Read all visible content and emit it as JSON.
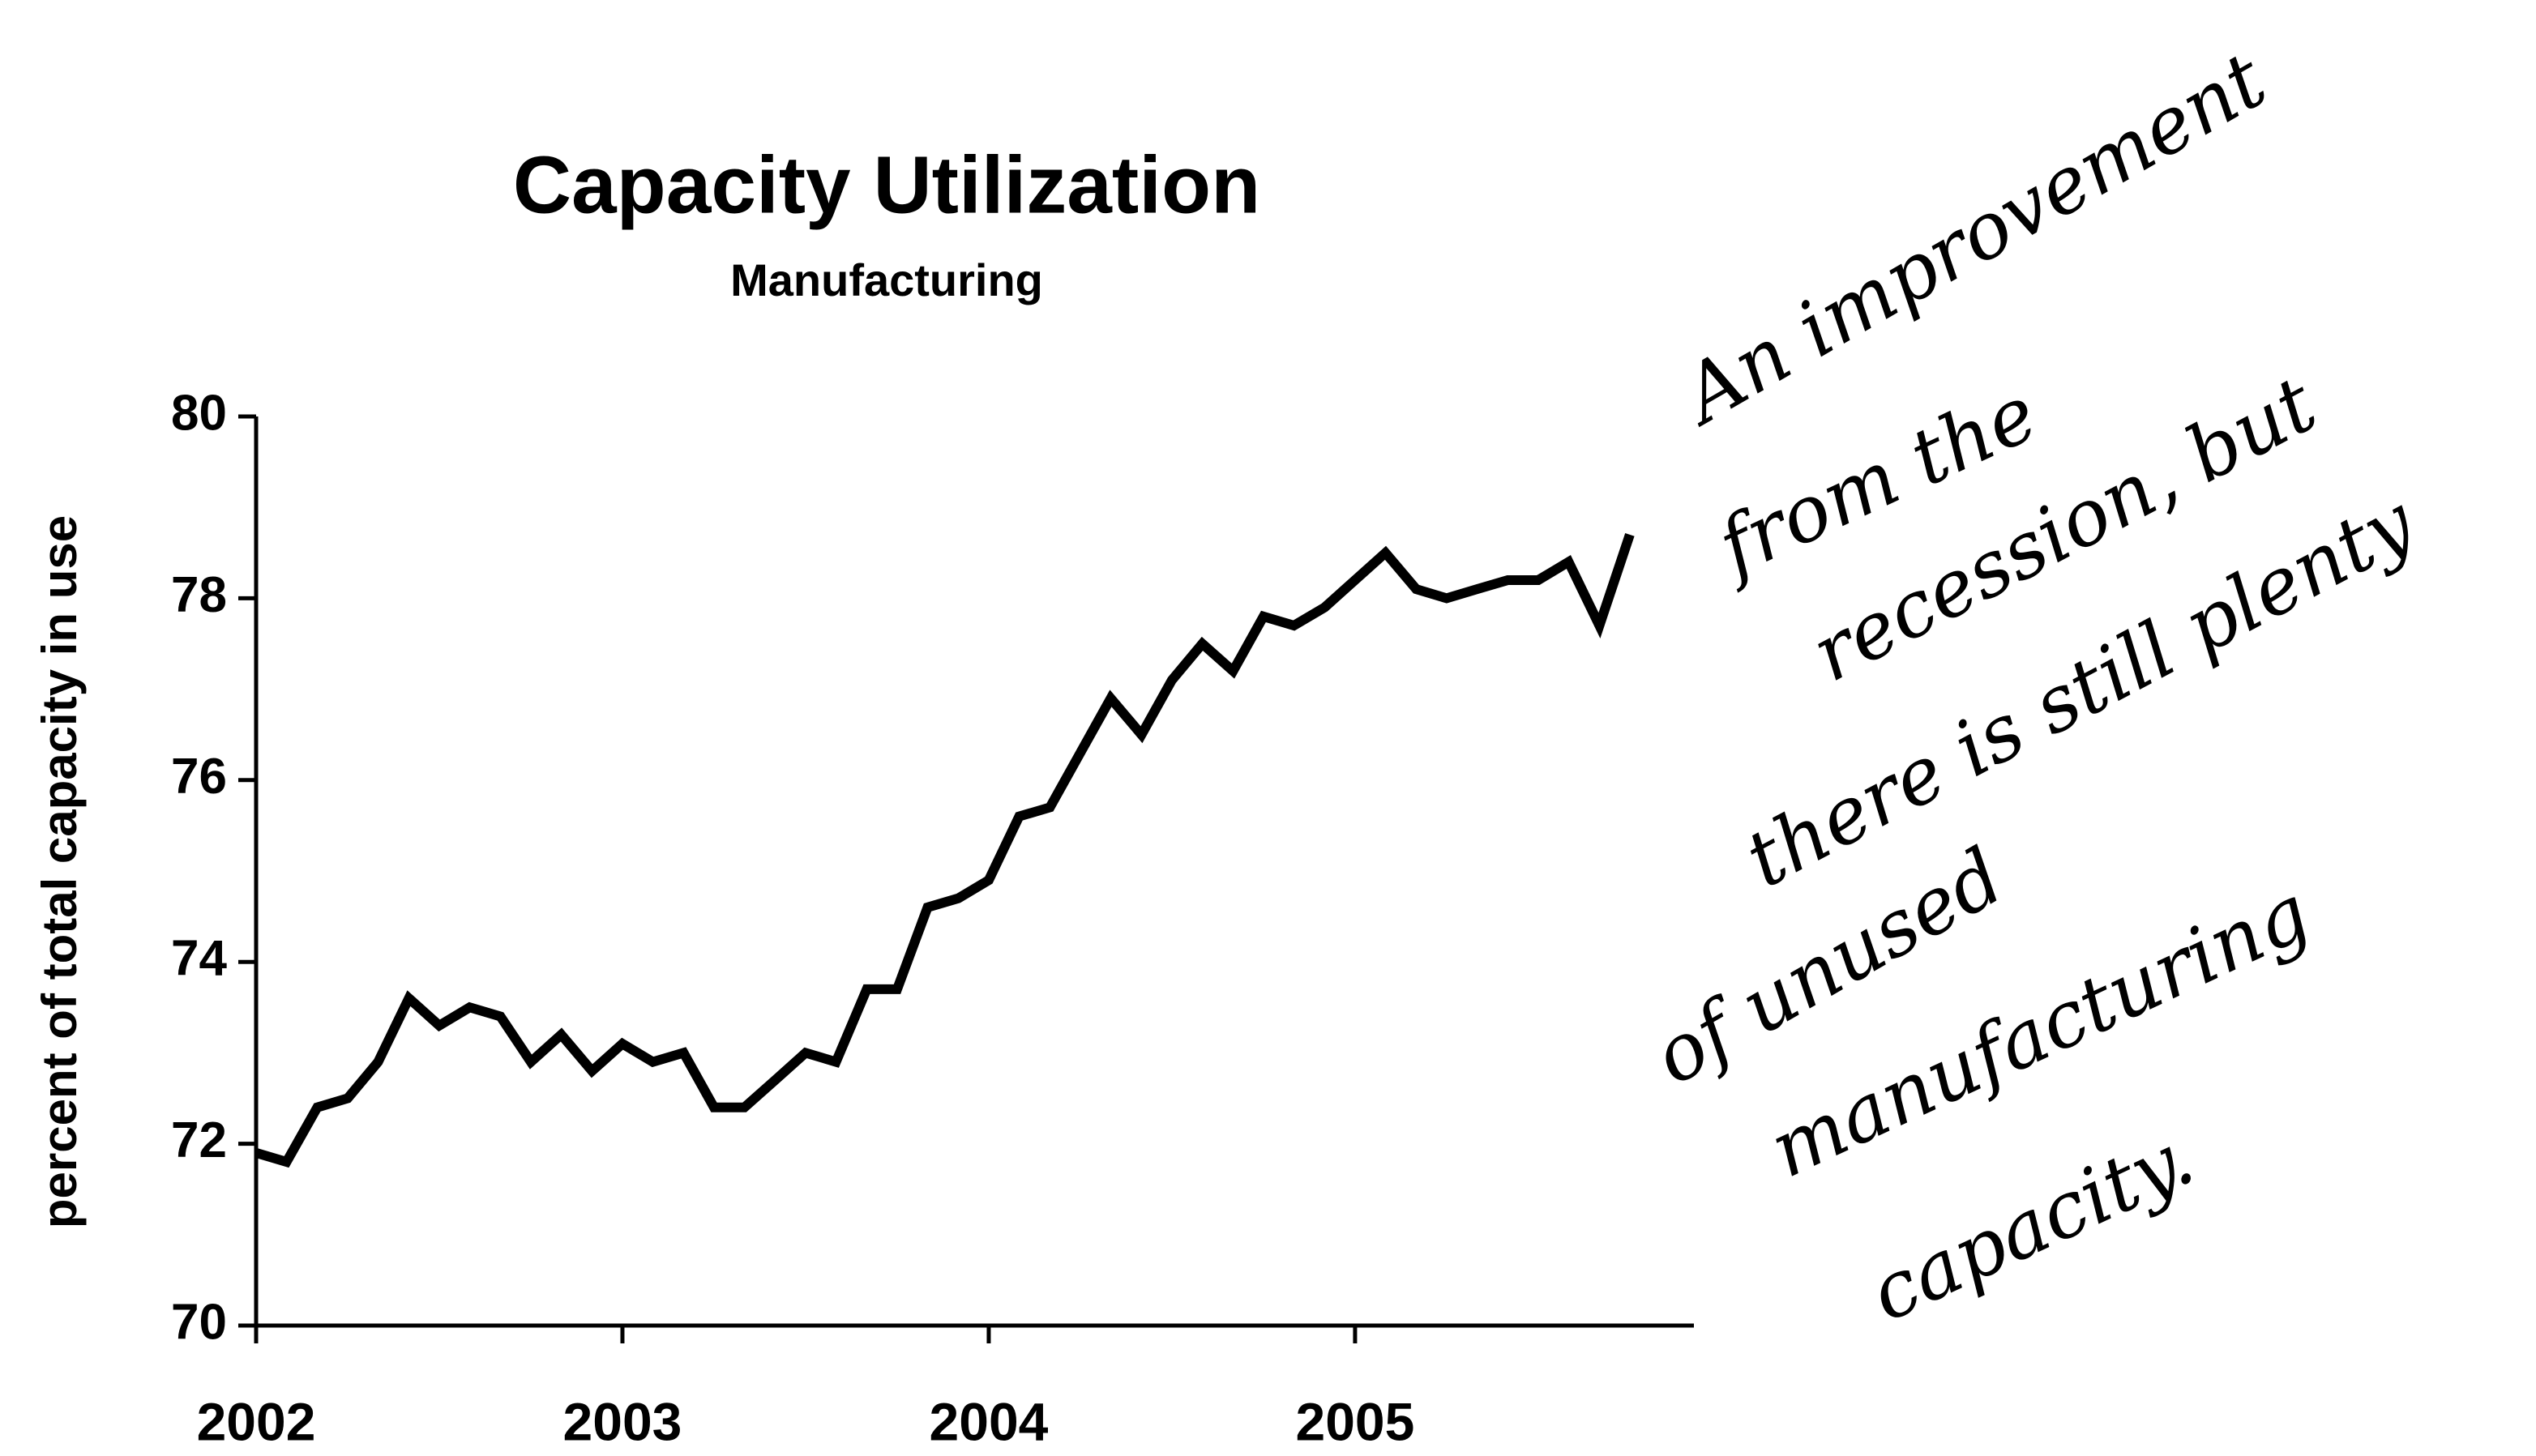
{
  "chart_data": {
    "type": "line",
    "title": "Capacity Utilization",
    "subtitle": "Manufacturing",
    "y_label": "percent of total capacity in use",
    "x": [
      2002.0,
      2002.083,
      2002.167,
      2002.25,
      2002.333,
      2002.417,
      2002.5,
      2002.583,
      2002.667,
      2002.75,
      2002.833,
      2002.917,
      2003.0,
      2003.083,
      2003.167,
      2003.25,
      2003.333,
      2003.417,
      2003.5,
      2003.583,
      2003.667,
      2003.75,
      2003.833,
      2003.917,
      2004.0,
      2004.083,
      2004.167,
      2004.25,
      2004.333,
      2004.417,
      2004.5,
      2004.583,
      2004.667,
      2004.75,
      2004.833,
      2004.917,
      2005.0,
      2005.083,
      2005.167,
      2005.25,
      2005.333,
      2005.417,
      2005.5,
      2005.583,
      2005.667,
      2005.75
    ],
    "series": [
      {
        "name": "Manufacturing",
        "color": "#000000",
        "values": [
          71.9,
          71.8,
          72.4,
          72.5,
          72.9,
          73.6,
          73.3,
          73.5,
          73.4,
          72.9,
          73.2,
          72.8,
          73.1,
          72.9,
          73.0,
          72.4,
          72.4,
          72.7,
          73.0,
          72.9,
          73.7,
          73.7,
          74.6,
          74.7,
          74.9,
          75.6,
          75.7,
          76.3,
          76.9,
          76.5,
          77.1,
          77.5,
          77.2,
          77.8,
          77.7,
          77.9,
          78.2,
          78.5,
          78.1,
          78.0,
          78.1,
          78.2,
          78.2,
          78.4,
          77.7,
          78.7
        ]
      }
    ],
    "xlim": [
      2002,
      2005.925
    ],
    "xticks": [
      2002,
      2003,
      2004,
      2005
    ],
    "ylim": [
      70,
      80
    ],
    "yticks": [
      70,
      72,
      74,
      76,
      78,
      80
    ],
    "grid": false,
    "annotations": [
      "An improvement",
      "from the",
      "recession, but",
      "there is still plenty",
      "of unused",
      "manufacturing",
      "capacity."
    ]
  }
}
